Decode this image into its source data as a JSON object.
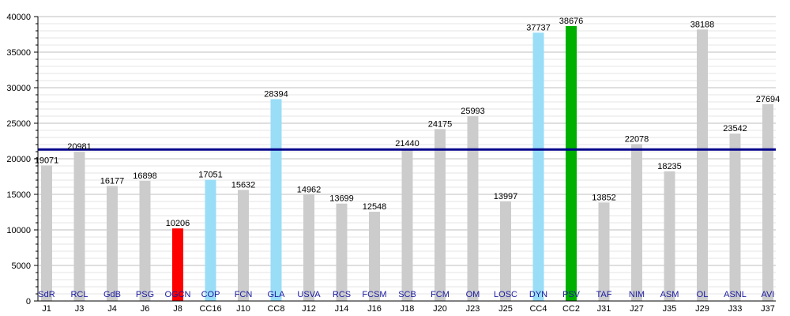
{
  "chart_data": {
    "type": "bar",
    "categories": [
      "J1",
      "J3",
      "J4",
      "J6",
      "J8",
      "CC16",
      "J10",
      "CC8",
      "J12",
      "J14",
      "J16",
      "J18",
      "J20",
      "J23",
      "J25",
      "CC4",
      "CC2",
      "J31",
      "J27",
      "J35",
      "J29",
      "J33",
      "J37"
    ],
    "team_labels": [
      "SdR",
      "RCL",
      "GdB",
      "PSG",
      "OGCN",
      "COP",
      "FCN",
      "GLA",
      "USVA",
      "RCS",
      "FCSM",
      "SCB",
      "FCM",
      "OM",
      "LOSC",
      "DYN",
      "PSV",
      "TAF",
      "NIM",
      "ASM",
      "OL",
      "ASNL",
      "AVI"
    ],
    "values": [
      19071,
      20981,
      16177,
      16898,
      10206,
      17051,
      15632,
      28394,
      14962,
      13699,
      12548,
      21440,
      24175,
      25993,
      13997,
      37737,
      38676,
      13852,
      22078,
      18235,
      38188,
      23542,
      27694
    ],
    "bar_colors": [
      "#cccccc",
      "#cccccc",
      "#cccccc",
      "#cccccc",
      "#ff0000",
      "#99ddf7",
      "#cccccc",
      "#99ddf7",
      "#cccccc",
      "#cccccc",
      "#cccccc",
      "#cccccc",
      "#cccccc",
      "#cccccc",
      "#cccccc",
      "#99ddf7",
      "#00b000",
      "#cccccc",
      "#cccccc",
      "#cccccc",
      "#cccccc",
      "#cccccc",
      "#cccccc"
    ],
    "ylim": [
      0,
      40000
    ],
    "yticks": [
      0,
      5000,
      10000,
      15000,
      20000,
      25000,
      30000,
      35000,
      40000
    ],
    "average_line": 21300,
    "average_line_color": "#00008b",
    "grid": true
  }
}
